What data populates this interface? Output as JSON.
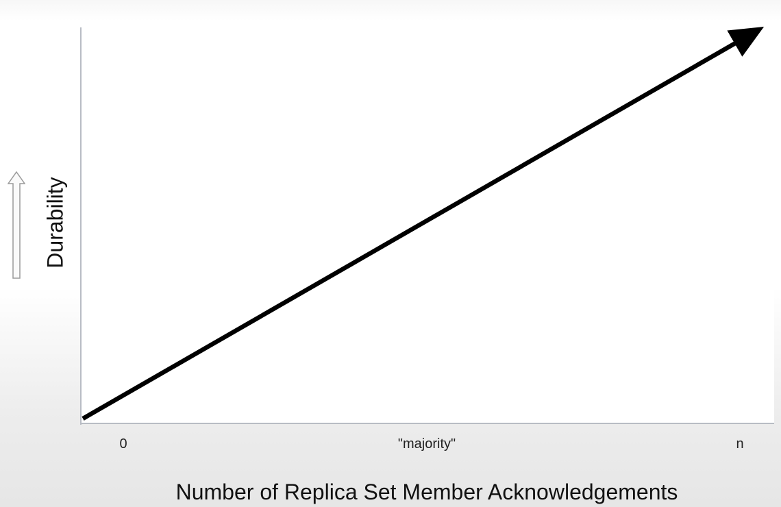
{
  "chart_data": {
    "type": "line",
    "xlabel": "Number of Replica Set Member Acknowledgements",
    "ylabel": "Durability",
    "categories": [
      "0",
      "\"majority\"",
      "n"
    ],
    "series": [
      {
        "x": [
          0,
          1
        ],
        "y": [
          0,
          1
        ]
      }
    ],
    "grid": false,
    "legend": "none",
    "line_color": "#000000",
    "axis_color": "#b8bcc4",
    "icons": {
      "ylabel_arrow": "up-arrow-icon"
    }
  }
}
